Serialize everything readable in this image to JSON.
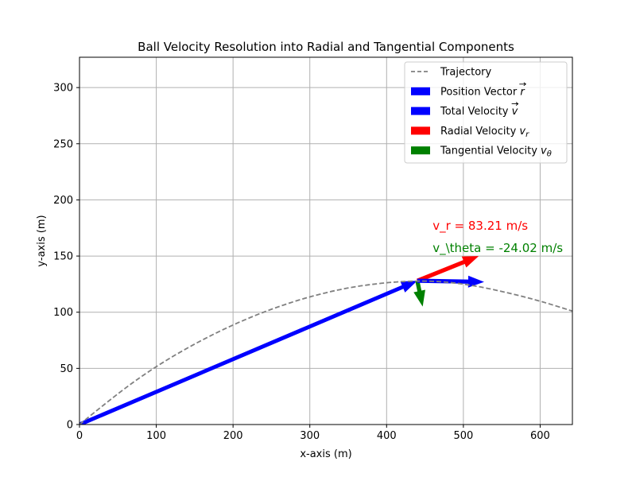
{
  "chart_data": {
    "type": "line",
    "title": "Ball Velocity Resolution into Radial and Tangential Components",
    "xlabel": "x-axis (m)",
    "ylabel": "y-axis (m)",
    "xlim": [
      0,
      642
    ],
    "ylim": [
      0,
      327
    ],
    "xticks": [
      0,
      100,
      200,
      300,
      400,
      500,
      600
    ],
    "yticks": [
      0,
      50,
      100,
      150,
      200,
      250,
      300
    ],
    "grid": true,
    "legend_position": "top-right",
    "colors": {
      "trajectory": "#808080",
      "position": "#0000ff",
      "total_velocity": "#0000ff",
      "radial": "#ff0000",
      "tangential": "#008000",
      "grid": "#b0b0b0"
    },
    "trajectory": {
      "name": "Trajectory",
      "style": "dashed",
      "points": [
        [
          0,
          0
        ],
        [
          50,
          28
        ],
        [
          100,
          52
        ],
        [
          150,
          72
        ],
        [
          200,
          89
        ],
        [
          250,
          103
        ],
        [
          300,
          114
        ],
        [
          350,
          122
        ],
        [
          400,
          126.5
        ],
        [
          440,
          128
        ],
        [
          480,
          127
        ],
        [
          520,
          123
        ],
        [
          560,
          117
        ],
        [
          600,
          110
        ],
        [
          642,
          101
        ]
      ]
    },
    "vectors": [
      {
        "id": "position",
        "name": "Position Vector $\\vec{r}$",
        "label_main": "Position Vector ",
        "label_sym": "r",
        "label_sub": "",
        "sym_arrow": true,
        "color": "#0000ff",
        "from": [
          0,
          0
        ],
        "to": [
          440,
          128
        ],
        "style": "line"
      },
      {
        "id": "total",
        "name": "Total Velocity $\\vec{v}$",
        "label_main": "Total Velocity ",
        "label_sym": "v",
        "label_sub": "",
        "sym_arrow": true,
        "color": "#0000ff",
        "from": [
          440,
          128
        ],
        "to": [
          527,
          127
        ],
        "style": "quiver"
      },
      {
        "id": "radial",
        "name": "Radial Velocity $v_r$",
        "label_main": "Radial Velocity ",
        "label_sym": "v",
        "label_sub": "r",
        "sym_arrow": false,
        "color": "#ff0000",
        "from": [
          440,
          128
        ],
        "to": [
          520,
          150
        ],
        "style": "quiver"
      },
      {
        "id": "tangential",
        "name": "Tangential Velocity $v_\\theta$",
        "label_main": "Tangential Velocity ",
        "label_sym": "v",
        "label_sub": "θ",
        "sym_arrow": false,
        "color": "#008000",
        "from": [
          440,
          128
        ],
        "to": [
          447,
          105
        ],
        "style": "quiver"
      }
    ],
    "legend_entries": [
      {
        "key": "trajectory",
        "marker": "dashed-line"
      },
      {
        "key": "position",
        "marker": "patch"
      },
      {
        "key": "total",
        "marker": "patch"
      },
      {
        "key": "radial",
        "marker": "patch"
      },
      {
        "key": "tangential",
        "marker": "patch"
      }
    ],
    "annotations": [
      {
        "text": "v_r = 83.21 m/s",
        "color": "#ff0000",
        "x": 460,
        "y": 177
      },
      {
        "text": "v_\\theta = -24.02 m/s",
        "color": "#008000",
        "x": 460,
        "y": 157
      }
    ]
  }
}
